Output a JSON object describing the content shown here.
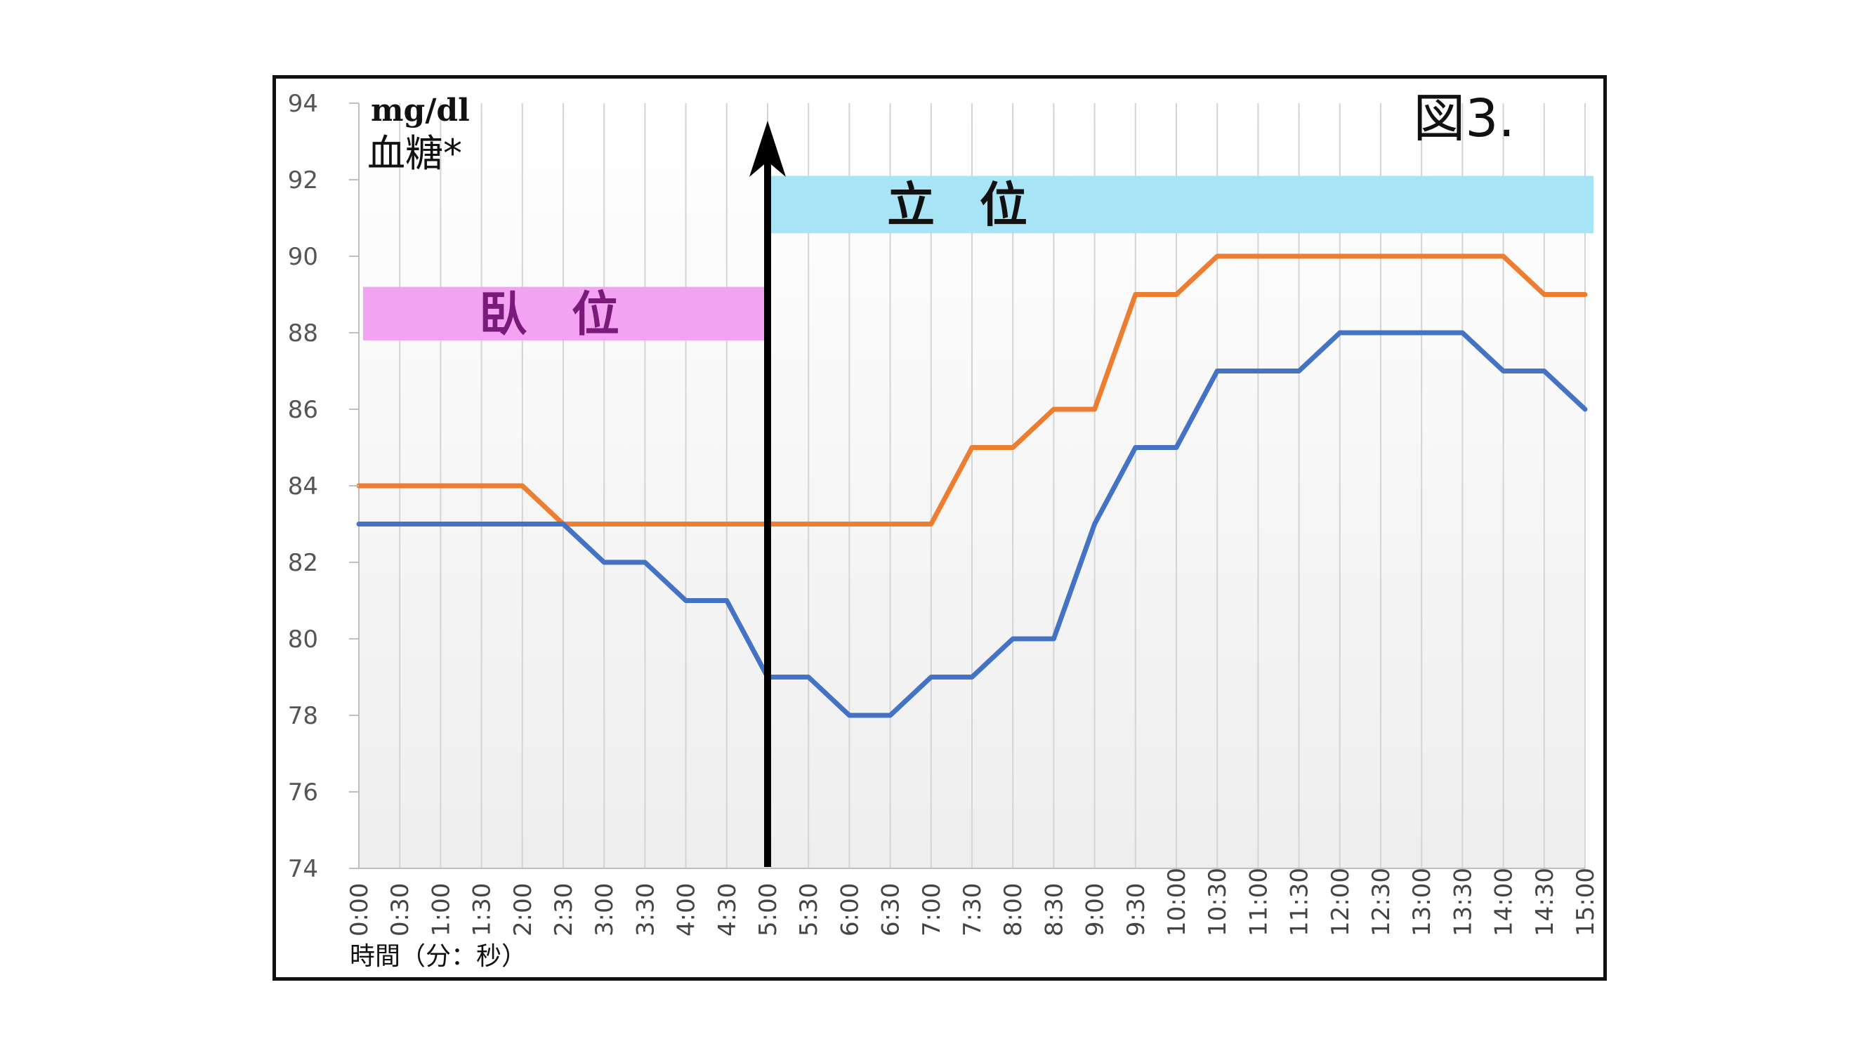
{
  "figure_label": "図3.",
  "chart_data": {
    "type": "line",
    "unit_label": "mg/dl",
    "ylabel": "血糖*",
    "xlabel": "時間（分：秒）",
    "ylim": [
      74,
      94
    ],
    "yticks": [
      74,
      76,
      78,
      80,
      82,
      84,
      86,
      88,
      90,
      92,
      94
    ],
    "categories": [
      "0:00",
      "0:30",
      "1:00",
      "1:30",
      "2:00",
      "2:30",
      "3:00",
      "3:30",
      "4:00",
      "4:30",
      "5:00",
      "5:30",
      "6:00",
      "6:30",
      "7:00",
      "7:30",
      "8:00",
      "8:30",
      "9:00",
      "9:30",
      "10:00",
      "10:30",
      "11:00",
      "11:30",
      "12:00",
      "12:30",
      "13:00",
      "13:30",
      "14:00",
      "14:30",
      "15:00"
    ],
    "series": [
      {
        "color": "#ed7d31",
        "values": [
          84,
          84,
          84,
          84,
          84,
          83,
          83,
          83,
          83,
          83,
          83,
          83,
          83,
          83,
          83,
          85,
          85,
          86,
          86,
          89,
          89,
          90,
          90,
          90,
          90,
          90,
          90,
          90,
          90,
          89,
          89
        ]
      },
      {
        "color": "#4472c4",
        "values": [
          83,
          83,
          83,
          83,
          83,
          83,
          82,
          82,
          81,
          81,
          79,
          79,
          78,
          78,
          79,
          79,
          80,
          80,
          83,
          85,
          85,
          87,
          87,
          87,
          88,
          88,
          88,
          88,
          87,
          87,
          86
        ]
      }
    ],
    "grid": "vertical",
    "annotations": {
      "lying": {
        "text": "臥 位",
        "color": "#f4a3f2"
      },
      "standing": {
        "text": "立 位",
        "color": "#a6e4f6"
      },
      "posture_change_at": "5:00"
    }
  }
}
